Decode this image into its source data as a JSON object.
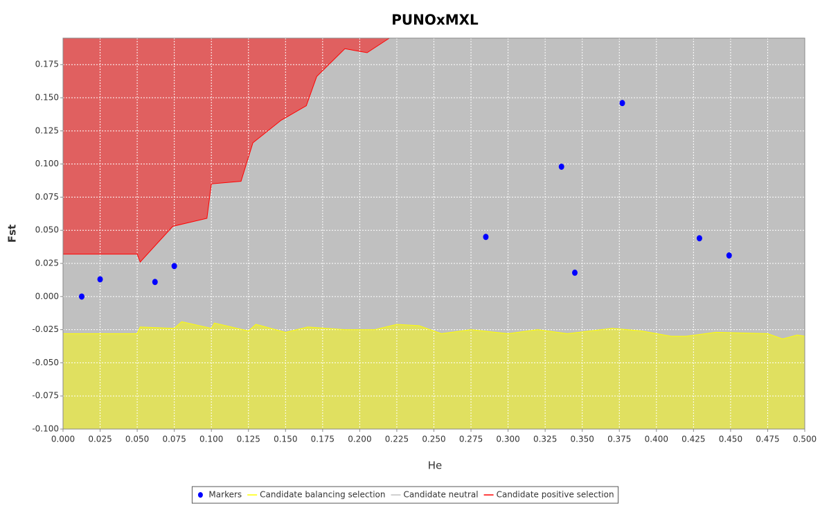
{
  "chart_data": {
    "type": "scatter",
    "title": "PUNOxMXL",
    "xlabel": "He",
    "ylabel": "Fst",
    "xlim": [
      0,
      0.5
    ],
    "ylim": [
      -0.1,
      0.195
    ],
    "grid": true,
    "legend": "bottom",
    "xticks": [
      {
        "value": 0,
        "label": "0.000"
      },
      {
        "value": 0.025,
        "label": "0.025"
      },
      {
        "value": 0.05,
        "label": "0.050"
      },
      {
        "value": 0.075,
        "label": "0.075"
      },
      {
        "value": 0.1,
        "label": "0.100"
      },
      {
        "value": 0.125,
        "label": "0.125"
      },
      {
        "value": 0.15,
        "label": "0.150"
      },
      {
        "value": 0.175,
        "label": "0.175"
      },
      {
        "value": 0.2,
        "label": "0.200"
      },
      {
        "value": 0.225,
        "label": "0.225"
      },
      {
        "value": 0.25,
        "label": "0.250"
      },
      {
        "value": 0.275,
        "label": "0.275"
      },
      {
        "value": 0.3,
        "label": "0.300"
      },
      {
        "value": 0.325,
        "label": "0.325"
      },
      {
        "value": 0.35,
        "label": "0.350"
      },
      {
        "value": 0.375,
        "label": "0.375"
      },
      {
        "value": 0.4,
        "label": "0.400"
      },
      {
        "value": 0.425,
        "label": "0.425"
      },
      {
        "value": 0.45,
        "label": "0.450"
      },
      {
        "value": 0.475,
        "label": "0.475"
      },
      {
        "value": 0.5,
        "label": "0.500"
      }
    ],
    "yticks": [
      {
        "value": -0.1,
        "label": "-0.100"
      },
      {
        "value": -0.075,
        "label": "-0.075"
      },
      {
        "value": -0.05,
        "label": "-0.050"
      },
      {
        "value": -0.025,
        "label": "-0.025"
      },
      {
        "value": 0,
        "label": "0.000"
      },
      {
        "value": 0.025,
        "label": "0.025"
      },
      {
        "value": 0.05,
        "label": "0.050"
      },
      {
        "value": 0.075,
        "label": "0.075"
      },
      {
        "value": 0.1,
        "label": "0.100"
      },
      {
        "value": 0.125,
        "label": "0.125"
      },
      {
        "value": 0.15,
        "label": "0.150"
      },
      {
        "value": 0.175,
        "label": "0.175"
      }
    ],
    "series": [
      {
        "name": "Markers",
        "color": "#0000ff",
        "x": [
          0.0126,
          0.025,
          0.062,
          0.075,
          0.285,
          0.336,
          0.345,
          0.377,
          0.429,
          0.449
        ],
        "values": [
          0,
          0.013,
          0.011,
          0.023,
          0.045,
          0.098,
          0.018,
          0.146,
          0.044,
          0.031
        ]
      },
      {
        "name": "Candidate balancing selection",
        "color": "#ffff00",
        "fill": "#e0e060",
        "x": [
          0,
          0.05,
          0.052,
          0.075,
          0.08,
          0.1,
          0.102,
          0.125,
          0.13,
          0.15,
          0.165,
          0.19,
          0.21,
          0.225,
          0.24,
          0.255,
          0.275,
          0.3,
          0.32,
          0.34,
          0.37,
          0.39,
          0.41,
          0.42,
          0.44,
          0.475,
          0.485,
          0.495,
          0.5
        ],
        "values": [
          -0.028,
          -0.028,
          -0.023,
          -0.024,
          -0.019,
          -0.024,
          -0.02,
          -0.026,
          -0.021,
          -0.027,
          -0.023,
          -0.025,
          -0.025,
          -0.021,
          -0.022,
          -0.028,
          -0.025,
          -0.028,
          -0.025,
          -0.028,
          -0.024,
          -0.026,
          -0.03,
          -0.03,
          -0.027,
          -0.028,
          -0.032,
          -0.029,
          -0.03
        ]
      },
      {
        "name": "Candidate neutral",
        "color": "#c0c0c0"
      },
      {
        "name": "Candidate positive selection",
        "color": "#ff0000",
        "fill": "#e06060",
        "x": [
          0,
          0.05,
          0.052,
          0.074,
          0.097,
          0.1,
          0.12,
          0.128,
          0.147,
          0.164,
          0.171,
          0.19,
          0.205,
          0.22
        ],
        "values": [
          0.032,
          0.032,
          0.026,
          0.053,
          0.059,
          0.085,
          0.087,
          0.116,
          0.133,
          0.144,
          0.166,
          0.187,
          0.184,
          0.195
        ]
      }
    ]
  }
}
